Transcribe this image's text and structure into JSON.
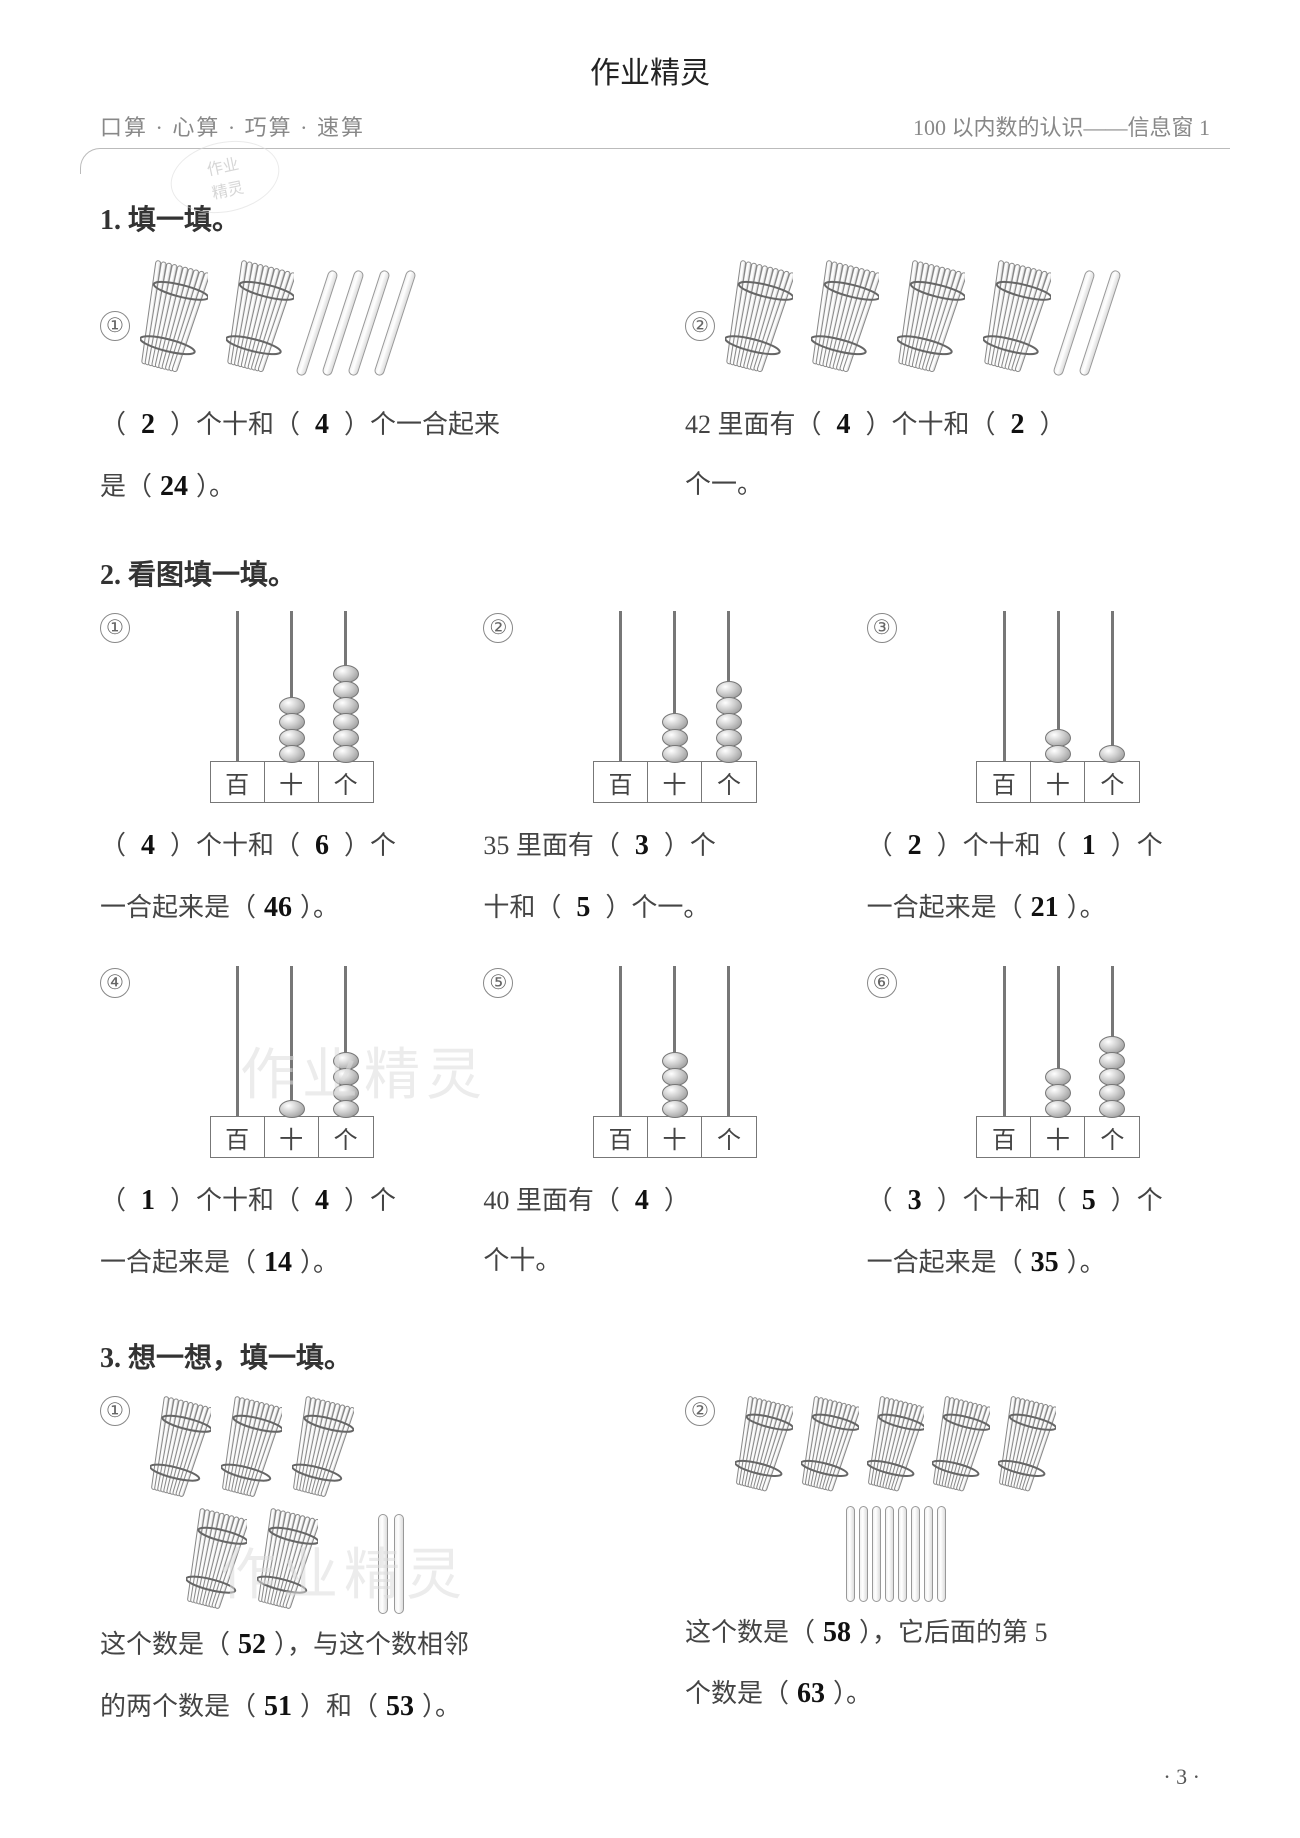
{
  "meta": {
    "top_watermark": "作业精灵",
    "header_left": "口算 · 心算 · 巧算 · 速算",
    "header_right": "100 以内数的认识——信息窗 1",
    "stamp_line1": "作业",
    "stamp_line2": "精灵",
    "watermark_text": "作业精灵",
    "page_number": "· 3 ·"
  },
  "colors": {
    "page_bg": "#ffffff",
    "body_text": "#444444",
    "light_text": "#888888",
    "handwriting": "#111111",
    "stick_border": "#999999",
    "abacus_line": "#777777",
    "watermark": "#dddddd"
  },
  "q1": {
    "title": "1. 填一填。",
    "items": [
      {
        "id": "①",
        "bundles": 2,
        "singles": 4,
        "text_parts": [
          "（",
          "）个十和（",
          "）个一合起来",
          "是（",
          "）。"
        ],
        "answers": [
          "2",
          "4",
          "24"
        ]
      },
      {
        "id": "②",
        "bundles": 4,
        "singles": 2,
        "text_prefix": "42 里面有（",
        "text_parts": [
          "）个十和（",
          "）",
          "个一。"
        ],
        "answers": [
          "4",
          "2"
        ]
      }
    ]
  },
  "q2": {
    "title": "2. 看图填一填。",
    "place_labels": [
      "百",
      "十",
      "个"
    ],
    "items": [
      {
        "id": "①",
        "beads": [
          0,
          4,
          6
        ],
        "sentence": "tens_ones_total",
        "answers": [
          "4",
          "6",
          "46"
        ]
      },
      {
        "id": "②",
        "beads": [
          0,
          3,
          5
        ],
        "sentence": "35_has",
        "answers": [
          "3",
          "5"
        ]
      },
      {
        "id": "③",
        "beads": [
          0,
          2,
          1
        ],
        "sentence": "tens_ones_total",
        "answers": [
          "2",
          "1",
          "21"
        ]
      },
      {
        "id": "④",
        "beads": [
          0,
          1,
          4
        ],
        "sentence": "tens_ones_total",
        "answers": [
          "1",
          "4",
          "14"
        ]
      },
      {
        "id": "⑤",
        "beads": [
          0,
          4,
          0
        ],
        "sentence": "40_has",
        "answers": [
          "4"
        ]
      },
      {
        "id": "⑥",
        "beads": [
          0,
          3,
          5
        ],
        "sentence": "tens_ones_total",
        "answers": [
          "3",
          "5",
          "35"
        ]
      }
    ],
    "sentences": {
      "tens_ones_total": {
        "parts": [
          "（",
          "）个十和（",
          "）个",
          "一合起来是（",
          "）。"
        ]
      },
      "35_has": {
        "parts": [
          "35 里面有（",
          "）个",
          "十和（",
          "）个一。"
        ]
      },
      "40_has": {
        "parts": [
          "40 里面有（",
          "）",
          "个十。"
        ]
      }
    }
  },
  "q3": {
    "title": "3. 想一想，填一填。",
    "items": [
      {
        "id": "①",
        "bundles": 5,
        "singles": 2,
        "layout": "3top_2bottom_singles_right",
        "text_parts": [
          "这个数是（",
          "），与这个数相邻",
          "的两个数是（",
          "）和（",
          "）。"
        ],
        "answers": [
          "52",
          "51",
          "53"
        ]
      },
      {
        "id": "②",
        "bundles": 5,
        "singles": 8,
        "layout": "5top_singles_row_below",
        "text_parts": [
          "这个数是（",
          "），它后面的第 5",
          "个数是（",
          "）。"
        ],
        "answers": [
          "58",
          "63"
        ]
      }
    ]
  }
}
